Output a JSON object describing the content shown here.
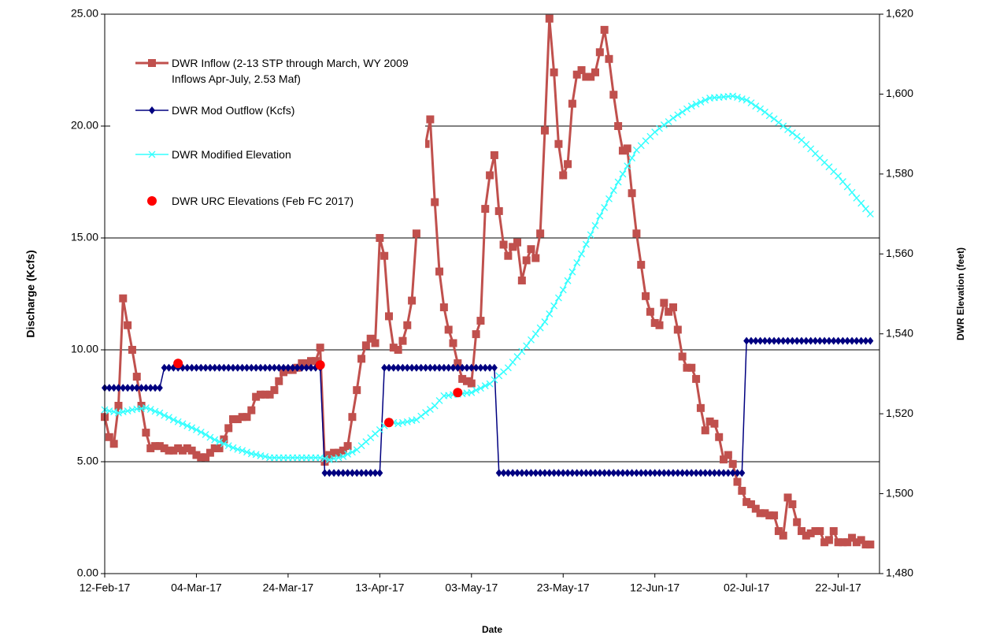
{
  "chart_data": {
    "type": "line",
    "x_label": "Date",
    "y_label": "Discharge (Kcfs)",
    "y2_label": "DWR Elevation (feet)",
    "xlim": [
      "2017-02-12",
      "2017-07-31"
    ],
    "xticks": [
      {
        "value": "2017-02-12",
        "label": "12-Feb-17"
      },
      {
        "value": "2017-03-04",
        "label": "04-Mar-17"
      },
      {
        "value": "2017-03-24",
        "label": "24-Mar-17"
      },
      {
        "value": "2017-04-13",
        "label": "13-Apr-17"
      },
      {
        "value": "2017-05-03",
        "label": "03-May-17"
      },
      {
        "value": "2017-05-23",
        "label": "23-May-17"
      },
      {
        "value": "2017-06-12",
        "label": "12-Jun-17"
      },
      {
        "value": "2017-07-02",
        "label": "02-Jul-17"
      },
      {
        "value": "2017-07-22",
        "label": "22-Jul-17"
      }
    ],
    "ylim": [
      0,
      25
    ],
    "yticks": [
      {
        "value": 0,
        "label": "0.00"
      },
      {
        "value": 5,
        "label": "5.00"
      },
      {
        "value": 10,
        "label": "10.00"
      },
      {
        "value": 15,
        "label": "15.00"
      },
      {
        "value": 20,
        "label": "20.00"
      },
      {
        "value": 25,
        "label": "25.00"
      }
    ],
    "y2lim": [
      1480,
      1620
    ],
    "y2ticks": [
      1480,
      1500,
      1520,
      1540,
      1560,
      1580,
      1600,
      {
        "value": 1620,
        "label": "1,620"
      }
    ],
    "grid": true,
    "legend": "upper left",
    "x": [
      "2017-02-12",
      "2017-02-13",
      "2017-02-14",
      "2017-02-15",
      "2017-02-16",
      "2017-02-17",
      "2017-02-18",
      "2017-02-19",
      "2017-02-20",
      "2017-02-21",
      "2017-02-22",
      "2017-02-23",
      "2017-02-24",
      "2017-02-25",
      "2017-02-26",
      "2017-02-27",
      "2017-02-28",
      "2017-03-01",
      "2017-03-02",
      "2017-03-03",
      "2017-03-04",
      "2017-03-05",
      "2017-03-06",
      "2017-03-07",
      "2017-03-08",
      "2017-03-09",
      "2017-03-10",
      "2017-03-11",
      "2017-03-12",
      "2017-03-13",
      "2017-03-14",
      "2017-03-15",
      "2017-03-16",
      "2017-03-17",
      "2017-03-18",
      "2017-03-19",
      "2017-03-20",
      "2017-03-21",
      "2017-03-22",
      "2017-03-23",
      "2017-03-24",
      "2017-03-25",
      "2017-03-26",
      "2017-03-27",
      "2017-03-28",
      "2017-03-29",
      "2017-03-30",
      "2017-03-31",
      "2017-04-01",
      "2017-04-02",
      "2017-04-03",
      "2017-04-04",
      "2017-04-05",
      "2017-04-06",
      "2017-04-07",
      "2017-04-08",
      "2017-04-09",
      "2017-04-10",
      "2017-04-11",
      "2017-04-12",
      "2017-04-13",
      "2017-04-14",
      "2017-04-15",
      "2017-04-16",
      "2017-04-17",
      "2017-04-18",
      "2017-04-19",
      "2017-04-20",
      "2017-04-21",
      "2017-04-22",
      "2017-04-23",
      "2017-04-24",
      "2017-04-25",
      "2017-04-26",
      "2017-04-27",
      "2017-04-28",
      "2017-04-29",
      "2017-04-30",
      "2017-05-01",
      "2017-05-02",
      "2017-05-03",
      "2017-05-04",
      "2017-05-05",
      "2017-05-06",
      "2017-05-07",
      "2017-05-08",
      "2017-05-09",
      "2017-05-10",
      "2017-05-11",
      "2017-05-12",
      "2017-05-13",
      "2017-05-14",
      "2017-05-15",
      "2017-05-16",
      "2017-05-17",
      "2017-05-18",
      "2017-05-19",
      "2017-05-20",
      "2017-05-21",
      "2017-05-22",
      "2017-05-23",
      "2017-05-24",
      "2017-05-25",
      "2017-05-26",
      "2017-05-27",
      "2017-05-28",
      "2017-05-29",
      "2017-05-30",
      "2017-05-31",
      "2017-06-01",
      "2017-06-02",
      "2017-06-03",
      "2017-06-04",
      "2017-06-05",
      "2017-06-06",
      "2017-06-07",
      "2017-06-08",
      "2017-06-09",
      "2017-06-10",
      "2017-06-11",
      "2017-06-12",
      "2017-06-13",
      "2017-06-14",
      "2017-06-15",
      "2017-06-16",
      "2017-06-17",
      "2017-06-18",
      "2017-06-19",
      "2017-06-20",
      "2017-06-21",
      "2017-06-22",
      "2017-06-23",
      "2017-06-24",
      "2017-06-25",
      "2017-06-26",
      "2017-06-27",
      "2017-06-28",
      "2017-06-29",
      "2017-06-30",
      "2017-07-01",
      "2017-07-02",
      "2017-07-03",
      "2017-07-04",
      "2017-07-05",
      "2017-07-06",
      "2017-07-07",
      "2017-07-08",
      "2017-07-09",
      "2017-07-10",
      "2017-07-11",
      "2017-07-12",
      "2017-07-13",
      "2017-07-14",
      "2017-07-15",
      "2017-07-16",
      "2017-07-17",
      "2017-07-18",
      "2017-07-19",
      "2017-07-20",
      "2017-07-21",
      "2017-07-22",
      "2017-07-23",
      "2017-07-24",
      "2017-07-25",
      "2017-07-26",
      "2017-07-27",
      "2017-07-28",
      "2017-07-29"
    ],
    "series": [
      {
        "name": "DWR Inflow (2-13 STP through March, WY 2009 Inflows Apr-July, 2.53 Maf)",
        "color": "#c0504d",
        "marker": "square",
        "line": true,
        "values": [
          7.0,
          6.1,
          5.8,
          7.5,
          12.3,
          11.1,
          10.0,
          8.8,
          7.5,
          6.3,
          5.6,
          5.7,
          5.7,
          5.6,
          5.5,
          5.5,
          5.6,
          5.5,
          5.6,
          5.5,
          5.3,
          5.2,
          5.2,
          5.4,
          5.6,
          5.6,
          6.0,
          6.5,
          6.9,
          6.9,
          7.0,
          7.0,
          7.3,
          7.9,
          8.0,
          8.0,
          8.0,
          8.2,
          8.6,
          9.0,
          9.1,
          9.1,
          9.2,
          9.4,
          9.4,
          9.5,
          9.5,
          10.1,
          5.0,
          5.3,
          5.4,
          5.4,
          5.5,
          5.7,
          7.0,
          8.2,
          9.6,
          10.2,
          10.5,
          10.3,
          15.0,
          14.2,
          11.5,
          10.1,
          10.0,
          10.4,
          11.1,
          12.2,
          15.2,
          null,
          19.2,
          20.3,
          16.6,
          13.5,
          11.9,
          10.9,
          10.3,
          9.4,
          8.7,
          8.6,
          8.5,
          10.7,
          11.3,
          16.3,
          17.8,
          18.7,
          16.2,
          14.7,
          14.2,
          14.6,
          14.8,
          13.1,
          14.0,
          14.5,
          14.1,
          15.2,
          19.8,
          24.8,
          22.4,
          19.2,
          17.8,
          18.3,
          21.0,
          22.3,
          22.5,
          22.2,
          22.2,
          22.4,
          23.3,
          24.3,
          23.0,
          21.4,
          20.0,
          18.9,
          19.0,
          17.0,
          15.2,
          13.8,
          12.4,
          11.7,
          11.2,
          11.1,
          12.1,
          11.7,
          11.9,
          10.9,
          9.7,
          9.2,
          9.2,
          8.7,
          7.4,
          6.4,
          6.8,
          6.7,
          6.1,
          5.1,
          5.3,
          4.9,
          4.1,
          3.7,
          3.2,
          3.1,
          2.9,
          2.7,
          2.7,
          2.6,
          2.6,
          1.9,
          1.7,
          3.4,
          3.1,
          2.3,
          1.9,
          1.7,
          1.8,
          1.9,
          1.9,
          1.4,
          1.5,
          1.9,
          1.4,
          1.4,
          1.4,
          1.6,
          1.4,
          1.5,
          1.3,
          1.3
        ]
      },
      {
        "name": "DWR Mod Outflow (Kcfs)",
        "color": "#000080",
        "marker": "diamond",
        "line": true,
        "values": [
          8.3,
          8.3,
          8.3,
          8.3,
          8.3,
          8.3,
          8.3,
          8.3,
          8.3,
          8.3,
          8.3,
          8.3,
          8.3,
          9.2,
          9.2,
          9.2,
          9.2,
          9.2,
          9.2,
          9.2,
          9.2,
          9.2,
          9.2,
          9.2,
          9.2,
          9.2,
          9.2,
          9.2,
          9.2,
          9.2,
          9.2,
          9.2,
          9.2,
          9.2,
          9.2,
          9.2,
          9.2,
          9.2,
          9.2,
          9.2,
          9.2,
          9.2,
          9.2,
          9.2,
          9.2,
          9.2,
          9.2,
          9.2,
          4.5,
          4.5,
          4.5,
          4.5,
          4.5,
          4.5,
          4.5,
          4.5,
          4.5,
          4.5,
          4.5,
          4.5,
          4.5,
          9.2,
          9.2,
          9.2,
          9.2,
          9.2,
          9.2,
          9.2,
          9.2,
          9.2,
          9.2,
          9.2,
          9.2,
          9.2,
          9.2,
          9.2,
          9.2,
          9.2,
          9.2,
          9.2,
          9.2,
          9.2,
          9.2,
          9.2,
          9.2,
          9.2,
          4.5,
          4.5,
          4.5,
          4.5,
          4.5,
          4.5,
          4.5,
          4.5,
          4.5,
          4.5,
          4.5,
          4.5,
          4.5,
          4.5,
          4.5,
          4.5,
          4.5,
          4.5,
          4.5,
          4.5,
          4.5,
          4.5,
          4.5,
          4.5,
          4.5,
          4.5,
          4.5,
          4.5,
          4.5,
          4.5,
          4.5,
          4.5,
          4.5,
          4.5,
          4.5,
          4.5,
          4.5,
          4.5,
          4.5,
          4.5,
          4.5,
          4.5,
          4.5,
          4.5,
          4.5,
          4.5,
          4.5,
          4.5,
          4.5,
          4.5,
          4.5,
          4.5,
          4.5,
          4.5,
          10.4,
          10.4,
          10.4,
          10.4,
          10.4,
          10.4,
          10.4,
          10.4,
          10.4,
          10.4,
          10.4,
          10.4,
          10.4,
          10.4,
          10.4,
          10.4,
          10.4,
          10.4,
          10.4,
          10.4,
          10.4,
          10.4,
          10.4,
          10.4,
          10.4,
          10.4,
          10.4,
          10.4
        ]
      },
      {
        "name": "DWR Modified Elevation",
        "color": "#33ffff",
        "marker": "x",
        "line": true,
        "axis": "y2",
        "values": [
          1521.0,
          1520.7,
          1520.5,
          1520.2,
          1520.5,
          1520.7,
          1521.0,
          1521.2,
          1521.3,
          1521.5,
          1521.1,
          1520.6,
          1520.2,
          1519.6,
          1519.1,
          1518.5,
          1518.0,
          1517.5,
          1517.0,
          1516.5,
          1516.0,
          1515.4,
          1514.8,
          1514.1,
          1513.5,
          1513.0,
          1512.5,
          1512.0,
          1511.5,
          1511.1,
          1510.8,
          1510.4,
          1510.0,
          1509.8,
          1509.5,
          1509.3,
          1509.0,
          1509.0,
          1509.0,
          1509.0,
          1509.0,
          1509.0,
          1509.0,
          1509.0,
          1509.0,
          1509.0,
          1509.0,
          1509.0,
          1508.8,
          1508.5,
          1508.8,
          1509.0,
          1509.3,
          1509.9,
          1510.4,
          1511.0,
          1512.0,
          1513.0,
          1514.0,
          1515.0,
          1516.0,
          1517.0,
          1518.0,
          1517.8,
          1517.5,
          1517.8,
          1518.0,
          1518.3,
          1518.5,
          1519.4,
          1520.3,
          1521.1,
          1522.0,
          1523.3,
          1524.5,
          1524.6,
          1524.8,
          1524.9,
          1525.0,
          1525.2,
          1525.3,
          1525.9,
          1526.4,
          1527.0,
          1527.5,
          1528.5,
          1529.5,
          1530.5,
          1531.5,
          1532.9,
          1534.3,
          1535.6,
          1537.0,
          1538.5,
          1540.0,
          1541.5,
          1543.0,
          1545.0,
          1547.0,
          1549.0,
          1551.0,
          1553.3,
          1555.5,
          1557.8,
          1560.0,
          1562.4,
          1564.8,
          1567.1,
          1569.5,
          1571.6,
          1573.8,
          1575.9,
          1578.0,
          1580.0,
          1582.0,
          1584.0,
          1586.0,
          1587.1,
          1588.3,
          1589.4,
          1590.5,
          1591.4,
          1592.3,
          1593.1,
          1594.0,
          1594.8,
          1595.5,
          1596.3,
          1597.0,
          1597.5,
          1598.0,
          1598.5,
          1599.0,
          1599.1,
          1599.2,
          1599.3,
          1599.4,
          1599.5,
          1599.2,
          1598.8,
          1598.5,
          1597.8,
          1597.0,
          1596.3,
          1595.5,
          1594.6,
          1593.8,
          1592.9,
          1592.0,
          1591.1,
          1590.3,
          1589.4,
          1588.5,
          1587.4,
          1586.3,
          1585.1,
          1584.0,
          1582.9,
          1581.8,
          1580.6,
          1579.5,
          1578.1,
          1576.8,
          1575.4,
          1574.0,
          1572.7,
          1571.3,
          1570.0
        ]
      },
      {
        "name": "DWR URC Elevations (Feb FC 2017)",
        "color": "#ff0000",
        "marker": "circle",
        "line": false,
        "axis": "y2",
        "x": [
          "2017-02-28",
          "2017-03-31",
          "2017-04-15",
          "2017-04-30"
        ],
        "values": [
          1532.6,
          1532.2,
          1517.8,
          1525.3
        ]
      }
    ]
  }
}
